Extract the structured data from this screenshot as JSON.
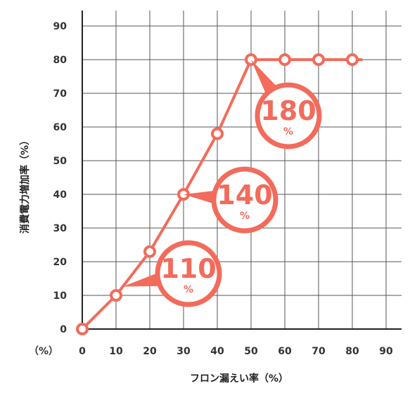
{
  "chart_data": {
    "type": "line",
    "xlabel": "フロン漏えい率（%）",
    "ylabel": "消費電力増加率（%）",
    "unit_marker": "（%）",
    "xlim": [
      0,
      90
    ],
    "ylim": [
      0,
      90
    ],
    "x_ticks": [
      "0",
      "10",
      "20",
      "30",
      "40",
      "50",
      "60",
      "70",
      "80",
      "90"
    ],
    "y_ticks": [
      "0",
      "10",
      "20",
      "30",
      "40",
      "50",
      "60",
      "70",
      "80",
      "90"
    ],
    "grid": true,
    "series": [
      {
        "x": [
          0,
          10,
          20,
          30,
          40,
          50,
          60,
          70,
          80
        ],
        "y": [
          0,
          10,
          23,
          40,
          58,
          80,
          80,
          80,
          80
        ],
        "line_extends_to_x": 83
      }
    ],
    "annotations": [
      {
        "value": "110",
        "unit": "%",
        "point_x": 12
      },
      {
        "value": "140",
        "unit": "%",
        "point_x": 30
      },
      {
        "value": "180",
        "unit": "%",
        "point_x": 50
      }
    ],
    "colors": {
      "line": "#f26b5b",
      "marker_fill": "#ffffff",
      "grid": "#555555",
      "text": "#333333"
    }
  }
}
